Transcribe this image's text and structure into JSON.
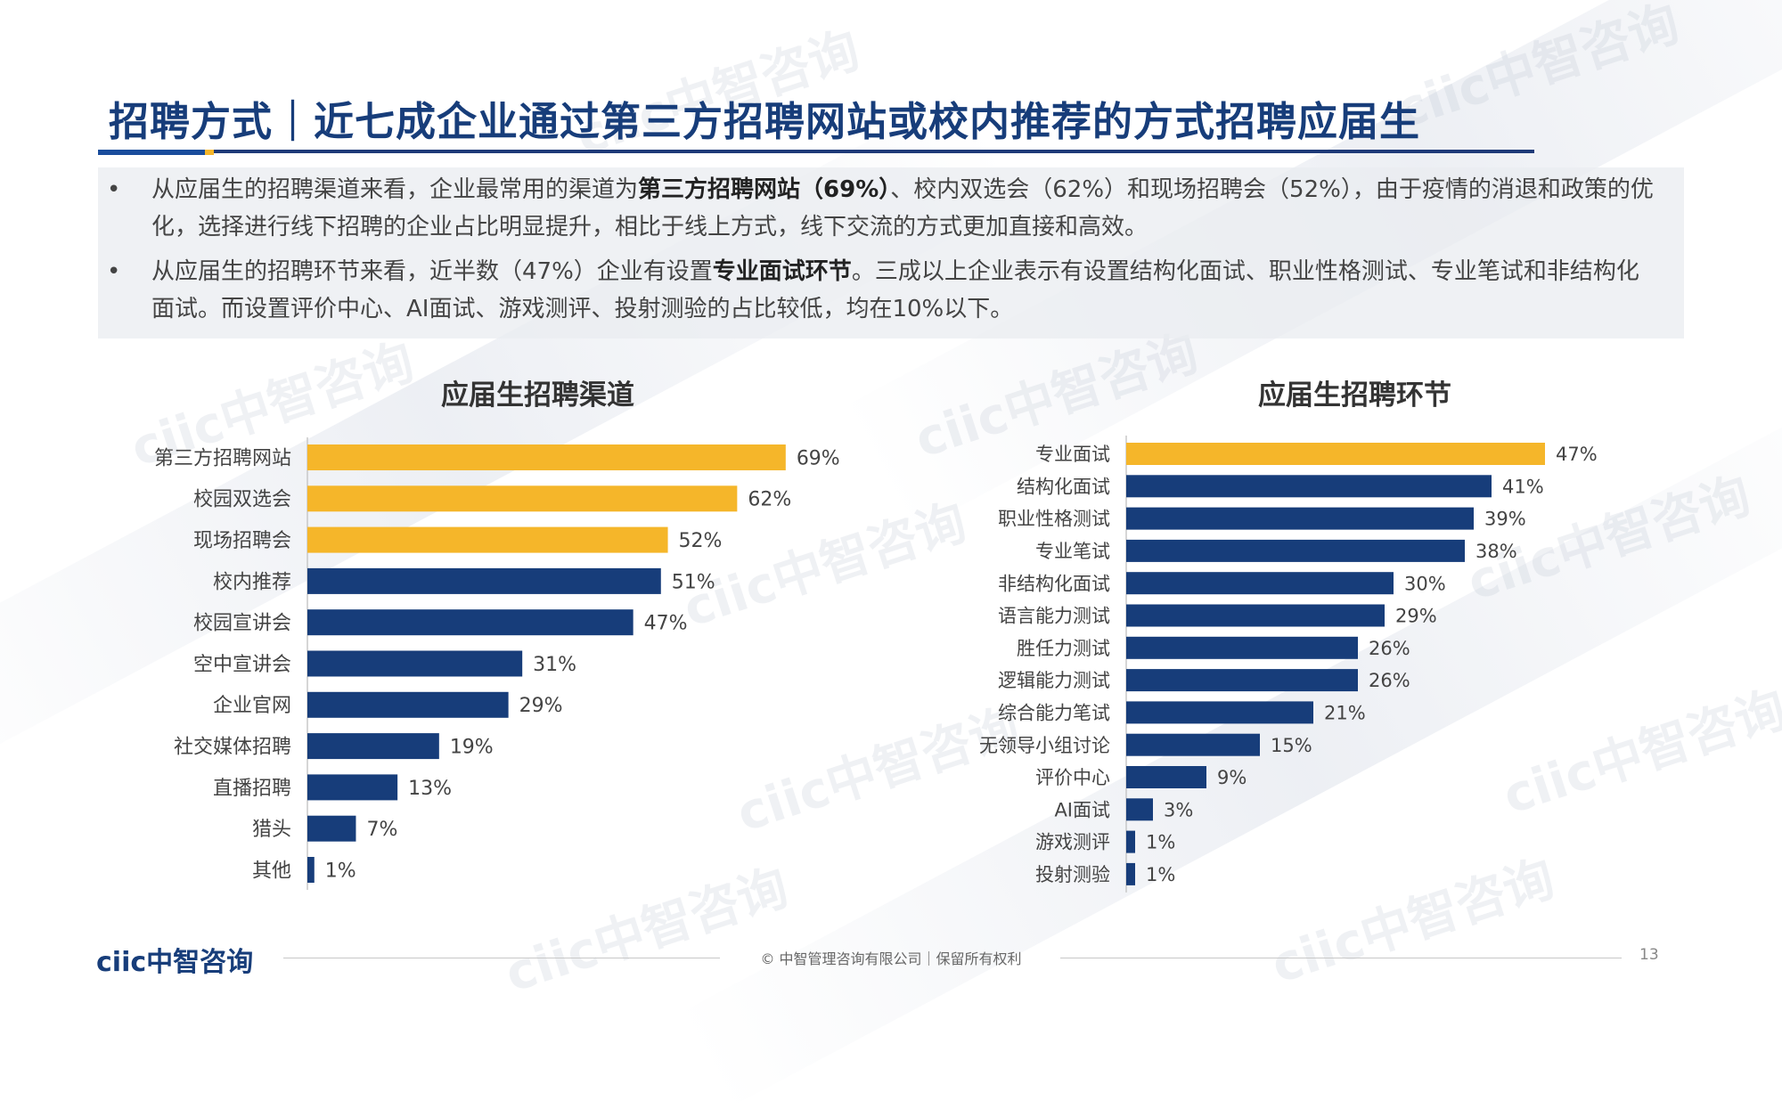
{
  "title": "招聘方式｜近七成企业通过第三方招聘网站或校内推荐的方式招聘应届生",
  "bullets": [
    {
      "dot": "•",
      "parts": [
        "从应届生的招聘渠道来看，企业最常用的渠道为",
        "第三方招聘网站（69%）",
        "、校内双选会（62%）和现场招聘会（52%），由于疫情的消退和政策的优化，选择进行线下招聘的企业占比明显提升，相比于线上方式，线下交流的方式更加直接和高效。"
      ]
    },
    {
      "dot": "•",
      "parts": [
        "从应届生的招聘环节来看，近半数（47%）企业有设置",
        "专业面试环节",
        "。三成以上企业表示有设置结构化面试、职业性格测试、专业笔试和非结构化面试。而设置评价中心、AI面试、游戏测评、投射测验的占比较低，均在10%以下。"
      ]
    }
  ],
  "watermark_text": "ciic中智咨询",
  "colors": {
    "highlight": "#F5B62A",
    "primary": "#173D7A",
    "title": "#173D7A"
  },
  "chart_data": [
    {
      "type": "bar",
      "orientation": "horizontal",
      "title": "应届生招聘渠道",
      "categories": [
        "第三方招聘网站",
        "校园双选会",
        "现场招聘会",
        "校内推荐",
        "校园宣讲会",
        "空中宣讲会",
        "企业官网",
        "社交媒体招聘",
        "直播招聘",
        "猎头",
        "其他"
      ],
      "values": [
        69,
        62,
        52,
        51,
        47,
        31,
        29,
        19,
        13,
        7,
        1
      ],
      "value_labels": [
        "69%",
        "62%",
        "52%",
        "51%",
        "47%",
        "31%",
        "29%",
        "19%",
        "13%",
        "7%",
        "1%"
      ],
      "highlighted_count": 3,
      "unit": "%"
    },
    {
      "type": "bar",
      "orientation": "horizontal",
      "title": "应届生招聘环节",
      "categories": [
        "专业面试",
        "结构化面试",
        "职业性格测试",
        "专业笔试",
        "非结构化面试",
        "语言能力测试",
        "胜任力测试",
        "逻辑能力测试",
        "综合能力笔试",
        "无领导小组讨论",
        "评价中心",
        "AI面试",
        "游戏测评",
        "投射测验"
      ],
      "values": [
        47,
        41,
        39,
        38,
        30,
        29,
        26,
        26,
        21,
        15,
        9,
        3,
        1,
        1
      ],
      "value_labels": [
        "47%",
        "41%",
        "39%",
        "38%",
        "30%",
        "29%",
        "26%",
        "26%",
        "21%",
        "15%",
        "9%",
        "3%",
        "1%",
        "1%"
      ],
      "highlighted_count": 1,
      "unit": "%"
    }
  ],
  "footer": {
    "logo": "ciic中智咨询",
    "copyright": "© 中智管理咨询有限公司｜保留所有权利",
    "page_number": "13"
  }
}
